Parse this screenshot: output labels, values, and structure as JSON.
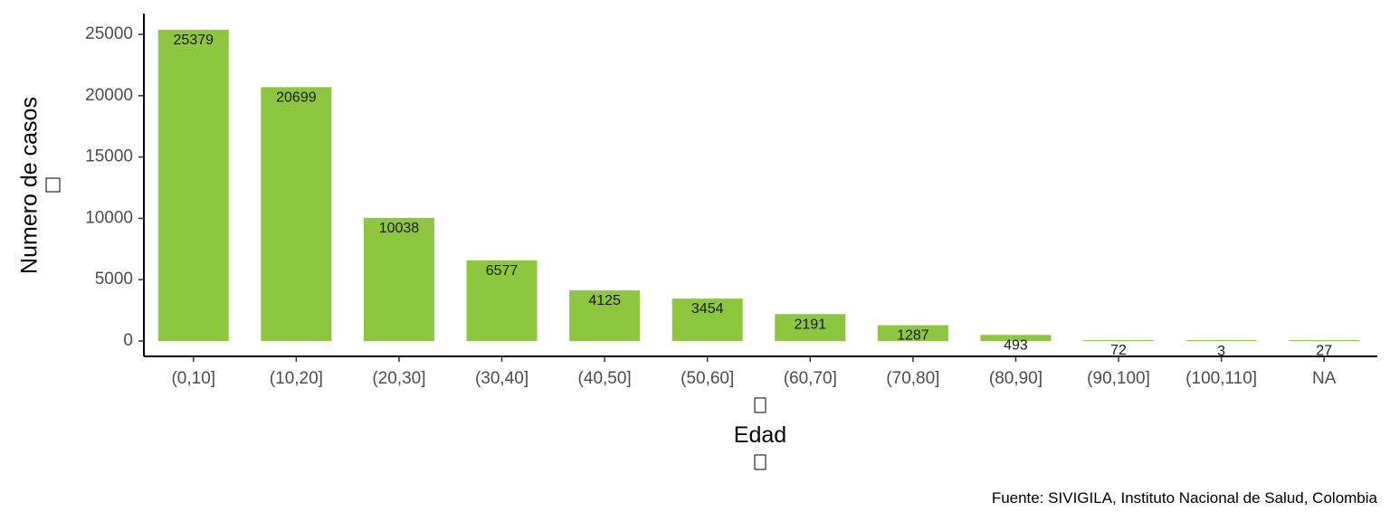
{
  "chart_data": {
    "type": "bar",
    "categories": [
      "(0,10]",
      "(10,20]",
      "(20,30]",
      "(30,40]",
      "(40,50]",
      "(50,60]",
      "(60,70]",
      "(70,80]",
      "(80,90]",
      "(90,100]",
      "(100,110]",
      "NA"
    ],
    "values": [
      25379,
      20699,
      10038,
      6577,
      4125,
      3454,
      2191,
      1287,
      493,
      72,
      3,
      27
    ],
    "data_labels": [
      "25379",
      "20699",
      "10038",
      "6577",
      "4125",
      "3454",
      "2191",
      "1287",
      "493",
      "72",
      "3",
      "27"
    ],
    "title": "",
    "xlabel": "Edad",
    "ylabel": "Numero de casos",
    "y_ticks": [
      0,
      5000,
      10000,
      15000,
      20000,
      25000
    ],
    "y_tick_labels": [
      "0",
      "5000",
      "10000",
      "15000",
      "20000",
      "25000"
    ],
    "ylim": [
      -1300,
      26000
    ],
    "grid": false,
    "legend": "none",
    "caption": "Fuente: SIVIGILA, Instituto Nacional de Salud, Colombia",
    "colors": {
      "bar": "#8DC63F",
      "axis": "#000000",
      "tick_text": "#4d4d4d"
    }
  }
}
